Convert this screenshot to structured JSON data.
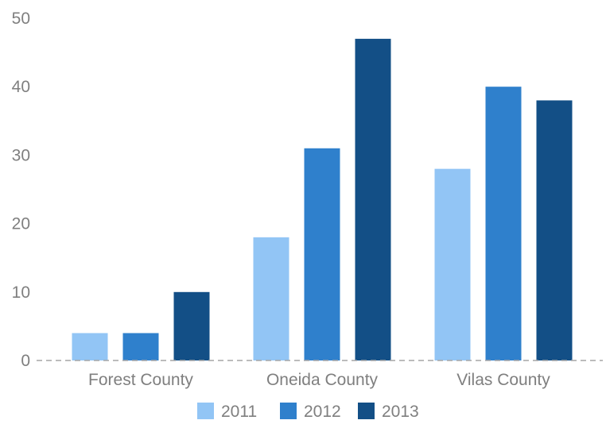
{
  "chart_data": {
    "type": "bar",
    "categories": [
      "Forest County",
      "Oneida County",
      "Vilas County"
    ],
    "series": [
      {
        "name": "2011",
        "values": [
          4,
          18,
          28
        ],
        "color": "#92c5f5"
      },
      {
        "name": "2012",
        "values": [
          4,
          31,
          40
        ],
        "color": "#2f80cc"
      },
      {
        "name": "2013",
        "values": [
          10,
          47,
          38
        ],
        "color": "#134f86"
      }
    ],
    "ylim": [
      0,
      50
    ],
    "yticks": [
      0,
      10,
      20,
      30,
      40,
      50
    ],
    "ytick_labels": [
      "0",
      "10",
      "20",
      "30",
      "40",
      "50"
    ],
    "grid": false,
    "legend": "bottom-center",
    "title": "",
    "xlabel": "",
    "ylabel": ""
  }
}
